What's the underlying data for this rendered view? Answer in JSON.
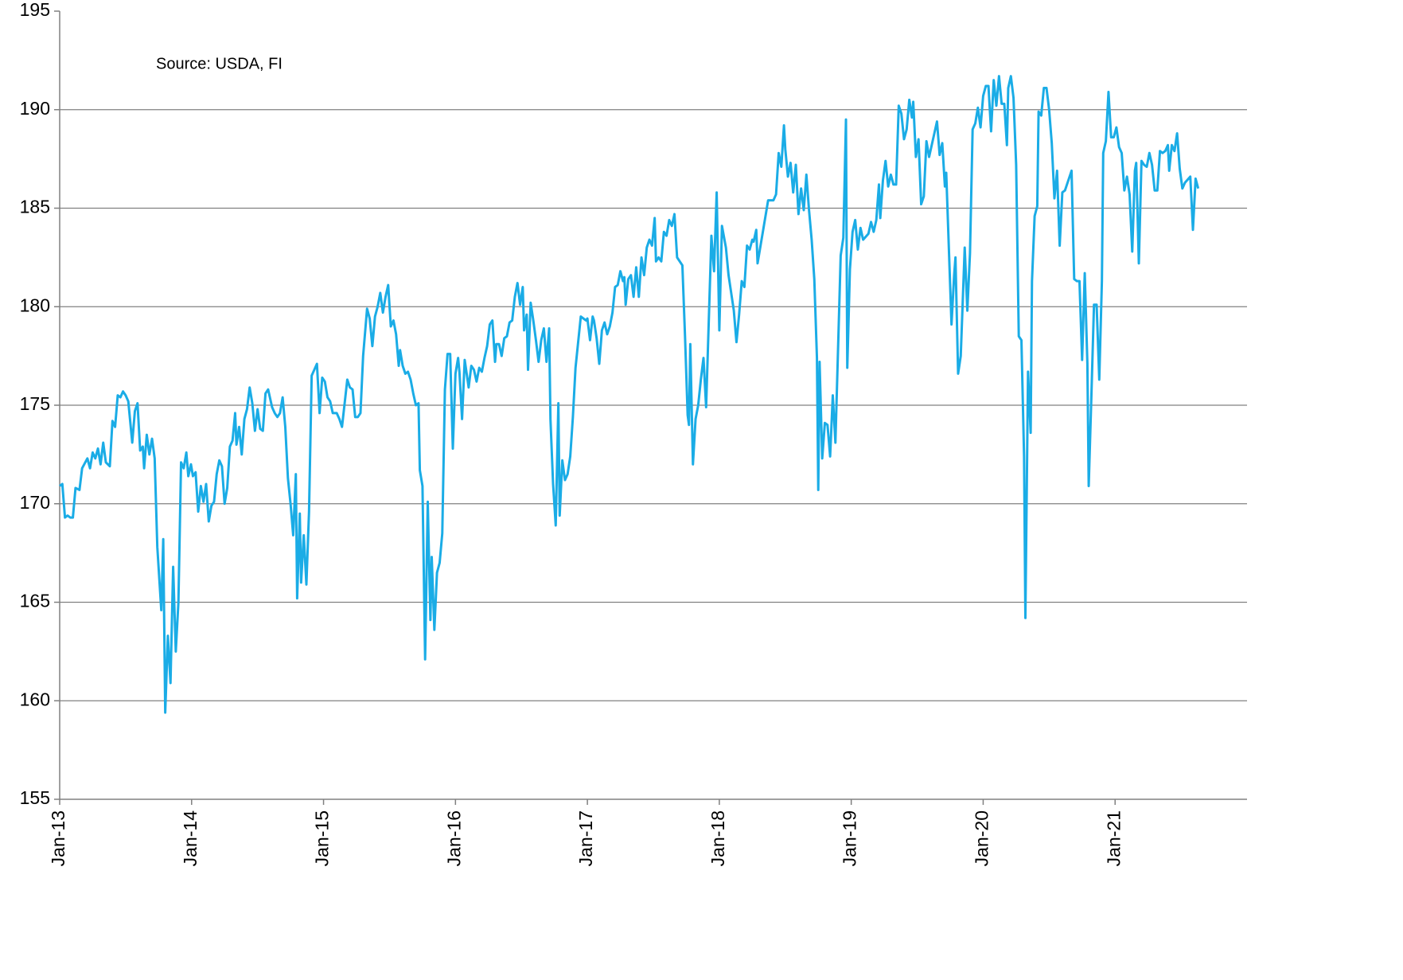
{
  "chart_data": {
    "type": "line",
    "annotation": "Source: USDA, FI",
    "color": "#1aace6",
    "x": [
      2013.0,
      2013.02,
      2013.04,
      2013.06,
      2013.08,
      2013.1,
      2013.12,
      2013.15,
      2013.17,
      2013.21,
      2013.23,
      2013.25,
      2013.27,
      2013.29,
      2013.31,
      2013.33,
      2013.35,
      2013.38,
      2013.4,
      2013.42,
      2013.44,
      2013.46,
      2013.48,
      2013.5,
      2013.52,
      2013.53,
      2013.55,
      2013.57,
      2013.59,
      2013.61,
      2013.63,
      2013.64,
      2013.66,
      2013.68,
      2013.7,
      2013.72,
      2013.74,
      2013.77,
      2013.785,
      2013.8,
      2013.82,
      2013.84,
      2013.86,
      2013.88,
      2013.9,
      2013.92,
      2013.94,
      2013.96,
      2013.975,
      2013.995,
      2014.01,
      2014.03,
      2014.05,
      2014.07,
      2014.09,
      2014.11,
      2014.13,
      2014.15,
      2014.17,
      2014.19,
      2014.21,
      2014.23,
      2014.25,
      2014.27,
      2014.29,
      2014.31,
      2014.33,
      2014.34,
      2014.36,
      2014.38,
      2014.4,
      2014.42,
      2014.44,
      2014.46,
      2014.48,
      2014.5,
      2014.52,
      2014.54,
      2014.56,
      2014.58,
      2014.61,
      2014.63,
      2014.65,
      2014.67,
      2014.69,
      2014.71,
      2014.73,
      2014.75,
      2014.77,
      2014.79,
      2014.8,
      2014.82,
      2014.83,
      2014.85,
      2014.87,
      2014.89,
      2014.91,
      2014.93,
      2014.95,
      2014.97,
      2014.99,
      2015.01,
      2015.03,
      2015.05,
      2015.07,
      2015.1,
      2015.12,
      2015.14,
      2015.16,
      2015.18,
      2015.2,
      2015.22,
      2015.24,
      2015.26,
      2015.28,
      2015.3,
      2015.33,
      2015.35,
      2015.37,
      2015.39,
      2015.41,
      2015.43,
      2015.45,
      2015.47,
      2015.49,
      2015.51,
      2015.53,
      2015.55,
      2015.57,
      2015.58,
      2015.6,
      2015.62,
      2015.64,
      2015.66,
      2015.68,
      2015.7,
      2015.72,
      2015.73,
      2015.75,
      2015.77,
      2015.79,
      2015.81,
      2015.82,
      2015.84,
      2015.86,
      2015.88,
      2015.9,
      2015.92,
      2015.94,
      2015.96,
      2015.98,
      2016.0,
      2016.02,
      2016.03,
      2016.05,
      2016.07,
      2016.1,
      2016.12,
      2016.14,
      2016.16,
      2016.18,
      2016.2,
      2016.22,
      2016.24,
      2016.26,
      2016.28,
      2016.3,
      2016.31,
      2016.33,
      2016.35,
      2016.37,
      2016.39,
      2016.41,
      2016.43,
      2016.45,
      2016.47,
      2016.49,
      2016.51,
      2016.52,
      2016.54,
      2016.55,
      2016.57,
      2016.59,
      2016.61,
      2016.63,
      2016.65,
      2016.67,
      2016.69,
      2016.71,
      2016.72,
      2016.74,
      2016.76,
      2016.78,
      2016.79,
      2016.81,
      2016.83,
      2016.85,
      2016.87,
      2016.89,
      2016.91,
      2016.95,
      2016.99,
      2017.0,
      2017.02,
      2017.04,
      2017.05,
      2017.07,
      2017.09,
      2017.11,
      2017.13,
      2017.15,
      2017.17,
      2017.19,
      2017.21,
      2017.23,
      2017.25,
      2017.27,
      2017.28,
      2017.29,
      2017.31,
      2017.33,
      2017.35,
      2017.37,
      2017.39,
      2017.41,
      2017.43,
      2017.45,
      2017.47,
      2017.49,
      2017.51,
      2017.52,
      2017.54,
      2017.56,
      2017.58,
      2017.6,
      2017.62,
      2017.64,
      2017.66,
      2017.68,
      2017.72,
      2017.74,
      2017.76,
      2017.77,
      2017.78,
      2017.8,
      2017.82,
      2017.84,
      2017.86,
      2017.88,
      2017.9,
      2017.94,
      2017.96,
      2017.98,
      2018.0,
      2018.02,
      2018.05,
      2018.07,
      2018.09,
      2018.11,
      2018.13,
      2018.15,
      2018.17,
      2018.19,
      2018.21,
      2018.23,
      2018.25,
      2018.26,
      2018.28,
      2018.29,
      2018.31,
      2018.33,
      2018.37,
      2018.41,
      2018.43,
      2018.45,
      2018.47,
      2018.49,
      2018.5,
      2018.52,
      2018.54,
      2018.56,
      2018.58,
      2018.6,
      2018.62,
      2018.64,
      2018.66,
      2018.68,
      2018.7,
      2018.72,
      2018.74,
      2018.75,
      2018.76,
      2018.78,
      2018.8,
      2018.82,
      2018.84,
      2018.86,
      2018.88,
      2018.92,
      2018.94,
      2018.96,
      2018.97,
      2018.99,
      2019.01,
      2019.03,
      2019.05,
      2019.07,
      2019.09,
      2019.13,
      2019.15,
      2019.17,
      2019.19,
      2019.21,
      2019.22,
      2019.24,
      2019.26,
      2019.28,
      2019.3,
      2019.32,
      2019.34,
      2019.36,
      2019.38,
      2019.4,
      2019.42,
      2019.44,
      2019.46,
      2019.47,
      2019.49,
      2019.51,
      2019.53,
      2019.55,
      2019.57,
      2019.59,
      2019.63,
      2019.65,
      2019.67,
      2019.69,
      2019.71,
      2019.72,
      2019.76,
      2019.78,
      2019.79,
      2019.81,
      2019.83,
      2019.86,
      2019.88,
      2019.9,
      2019.92,
      2019.94,
      2019.96,
      2019.98,
      2020.0,
      2020.02,
      2020.04,
      2020.06,
      2020.08,
      2020.1,
      2020.12,
      2020.14,
      2020.16,
      2020.18,
      2020.19,
      2020.21,
      2020.23,
      2020.25,
      2020.27,
      2020.29,
      2020.31,
      2020.32,
      2020.34,
      2020.36,
      2020.37,
      2020.39,
      2020.41,
      2020.42,
      2020.44,
      2020.46,
      2020.48,
      2020.5,
      2020.52,
      2020.54,
      2020.56,
      2020.58,
      2020.6,
      2020.62,
      2020.64,
      2020.66,
      2020.67,
      2020.69,
      2020.71,
      2020.73,
      2020.75,
      2020.77,
      2020.79,
      2020.8,
      2020.82,
      2020.84,
      2020.86,
      2020.88,
      2020.9,
      2020.91,
      2020.93,
      2020.95,
      2020.97,
      2020.99,
      2021.01,
      2021.03,
      2021.05,
      2021.07,
      2021.09,
      2021.11,
      2021.13,
      2021.15,
      2021.16,
      2021.18,
      2021.2,
      2021.22,
      2021.24,
      2021.26,
      2021.28,
      2021.3,
      2021.32,
      2021.34,
      2021.36,
      2021.38,
      2021.4,
      2021.41,
      2021.43,
      2021.45,
      2021.47,
      2021.49,
      2021.51,
      2021.53,
      2021.57,
      2021.59,
      2021.61,
      2021.63
    ],
    "values": [
      170.9,
      171.0,
      169.3,
      169.4,
      169.3,
      169.3,
      170.8,
      170.7,
      171.8,
      172.3,
      171.8,
      172.6,
      172.3,
      172.8,
      172.0,
      173.1,
      172.1,
      171.9,
      174.2,
      173.9,
      175.5,
      175.4,
      175.7,
      175.5,
      175.2,
      174.5,
      173.1,
      174.7,
      175.1,
      172.7,
      172.9,
      171.8,
      173.5,
      172.5,
      173.3,
      172.3,
      167.8,
      164.6,
      168.2,
      159.4,
      163.3,
      160.9,
      166.8,
      162.5,
      165.0,
      172.1,
      171.8,
      172.6,
      171.4,
      172.0,
      171.4,
      171.6,
      169.6,
      170.9,
      170.1,
      171.0,
      169.1,
      169.9,
      170.1,
      171.5,
      172.2,
      171.9,
      170.0,
      170.8,
      172.9,
      173.2,
      174.6,
      173.0,
      173.9,
      172.5,
      174.3,
      174.8,
      175.9,
      175.1,
      173.7,
      174.8,
      173.8,
      173.7,
      175.6,
      175.8,
      174.9,
      174.6,
      174.4,
      174.6,
      175.4,
      173.9,
      171.3,
      170.0,
      168.4,
      171.5,
      165.2,
      169.5,
      166.0,
      168.4,
      165.9,
      169.6,
      176.5,
      176.8,
      177.1,
      174.6,
      176.4,
      176.2,
      175.4,
      175.2,
      174.6,
      174.6,
      174.3,
      173.9,
      175.1,
      176.3,
      175.9,
      175.8,
      174.4,
      174.4,
      174.6,
      177.5,
      179.9,
      179.4,
      178.0,
      179.5,
      180.0,
      180.7,
      179.7,
      180.5,
      181.1,
      179.0,
      179.3,
      178.6,
      177.0,
      177.8,
      177.0,
      176.6,
      176.7,
      176.3,
      175.6,
      175.0,
      175.1,
      171.7,
      170.9,
      162.1,
      170.1,
      164.1,
      167.3,
      163.6,
      166.5,
      167.0,
      168.5,
      175.8,
      177.6,
      177.6,
      172.8,
      176.6,
      177.4,
      176.7,
      174.3,
      177.3,
      175.9,
      177.0,
      176.8,
      176.2,
      176.9,
      176.7,
      177.4,
      178.0,
      179.1,
      179.3,
      177.2,
      178.1,
      178.1,
      177.5,
      178.4,
      178.5,
      179.2,
      179.3,
      180.5,
      181.2,
      180.1,
      181.0,
      178.8,
      179.6,
      176.8,
      180.2,
      179.3,
      178.3,
      177.2,
      178.3,
      178.9,
      177.2,
      178.9,
      174.3,
      171.0,
      168.9,
      175.1,
      169.4,
      172.2,
      171.2,
      171.5,
      172.4,
      174.4,
      176.9,
      179.5,
      179.3,
      179.4,
      178.3,
      179.5,
      179.3,
      178.4,
      177.1,
      178.8,
      179.2,
      178.6,
      179.0,
      179.7,
      181.0,
      181.1,
      181.8,
      181.3,
      181.5,
      180.1,
      181.4,
      181.6,
      180.5,
      182.0,
      180.5,
      182.5,
      181.6,
      183.0,
      183.4,
      183.1,
      184.5,
      182.3,
      182.5,
      182.3,
      183.8,
      183.6,
      184.4,
      184.1,
      184.7,
      182.5,
      182.1,
      178.5,
      174.5,
      174.0,
      178.1,
      172.0,
      174.3,
      175.0,
      176.3,
      177.4,
      174.9,
      183.6,
      181.8,
      185.8,
      178.8,
      184.1,
      183.0,
      181.6,
      180.7,
      179.8,
      178.2,
      179.6,
      181.3,
      181.0,
      183.1,
      182.9,
      183.4,
      183.3,
      183.9,
      182.2,
      183.0,
      183.8,
      185.4,
      185.4,
      185.7,
      187.8,
      187.1,
      189.2,
      188.0,
      186.6,
      187.3,
      185.8,
      187.2,
      184.7,
      186.0,
      184.9,
      186.7,
      184.9,
      183.4,
      181.4,
      177.4,
      170.7,
      177.2,
      172.3,
      174.1,
      174.0,
      172.4,
      175.5,
      173.1,
      182.6,
      183.5,
      189.5,
      176.9,
      181.9,
      183.8,
      184.4,
      182.9,
      184.0,
      183.4,
      183.7,
      184.3,
      183.8,
      184.4,
      186.2,
      184.5,
      186.4,
      187.4,
      186.1,
      186.7,
      186.2,
      186.2,
      190.2,
      189.8,
      188.5,
      189.0,
      190.5,
      189.6,
      190.4,
      187.6,
      188.5,
      185.2,
      185.6,
      188.4,
      187.6,
      188.8,
      189.4,
      187.7,
      188.3,
      186.1,
      186.8,
      179.1,
      181.6,
      182.5,
      176.6,
      177.5,
      183.0,
      179.8,
      182.7,
      189.0,
      189.3,
      190.1,
      189.1,
      190.7,
      191.2,
      191.2,
      188.9,
      191.5,
      190.2,
      191.7,
      190.3,
      190.3,
      188.2,
      191.1,
      191.7,
      190.6,
      187.2,
      178.5,
      178.3,
      172.4,
      164.2,
      176.7,
      173.6,
      181.3,
      184.6,
      185.1,
      189.9,
      189.7,
      191.1,
      191.1,
      190.0,
      188.3,
      185.5,
      186.9,
      183.1,
      185.8,
      185.9,
      186.3,
      186.7,
      186.9,
      181.4,
      181.3,
      181.3,
      177.3,
      181.7,
      177.1,
      170.9,
      175.4,
      180.1,
      180.1,
      176.3,
      181.3,
      187.8,
      188.4,
      190.9,
      188.6,
      188.6,
      189.1,
      188.1,
      187.8,
      185.9,
      186.6,
      185.7,
      182.8,
      186.9,
      187.3,
      182.2,
      187.4,
      187.2,
      187.1,
      187.8,
      187.2,
      185.9,
      185.9,
      187.9,
      187.8,
      187.9,
      188.2,
      186.9,
      188.2,
      187.9,
      188.8,
      187.0,
      186.0,
      186.3,
      186.6,
      183.9,
      186.5,
      186.0
    ],
    "xlim": [
      2013,
      2022
    ],
    "xticks": [
      {
        "value": 2013,
        "label": "Jan-13"
      },
      {
        "value": 2014,
        "label": "Jan-14"
      },
      {
        "value": 2015,
        "label": "Jan-15"
      },
      {
        "value": 2016,
        "label": "Jan-16"
      },
      {
        "value": 2017,
        "label": "Jan-17"
      },
      {
        "value": 2018,
        "label": "Jan-18"
      },
      {
        "value": 2019,
        "label": "Jan-19"
      },
      {
        "value": 2020,
        "label": "Jan-20"
      },
      {
        "value": 2021,
        "label": "Jan-21"
      }
    ],
    "ylim": [
      155,
      195
    ],
    "yticks": [
      155,
      160,
      165,
      170,
      175,
      180,
      185,
      190,
      195
    ],
    "grid": true
  }
}
